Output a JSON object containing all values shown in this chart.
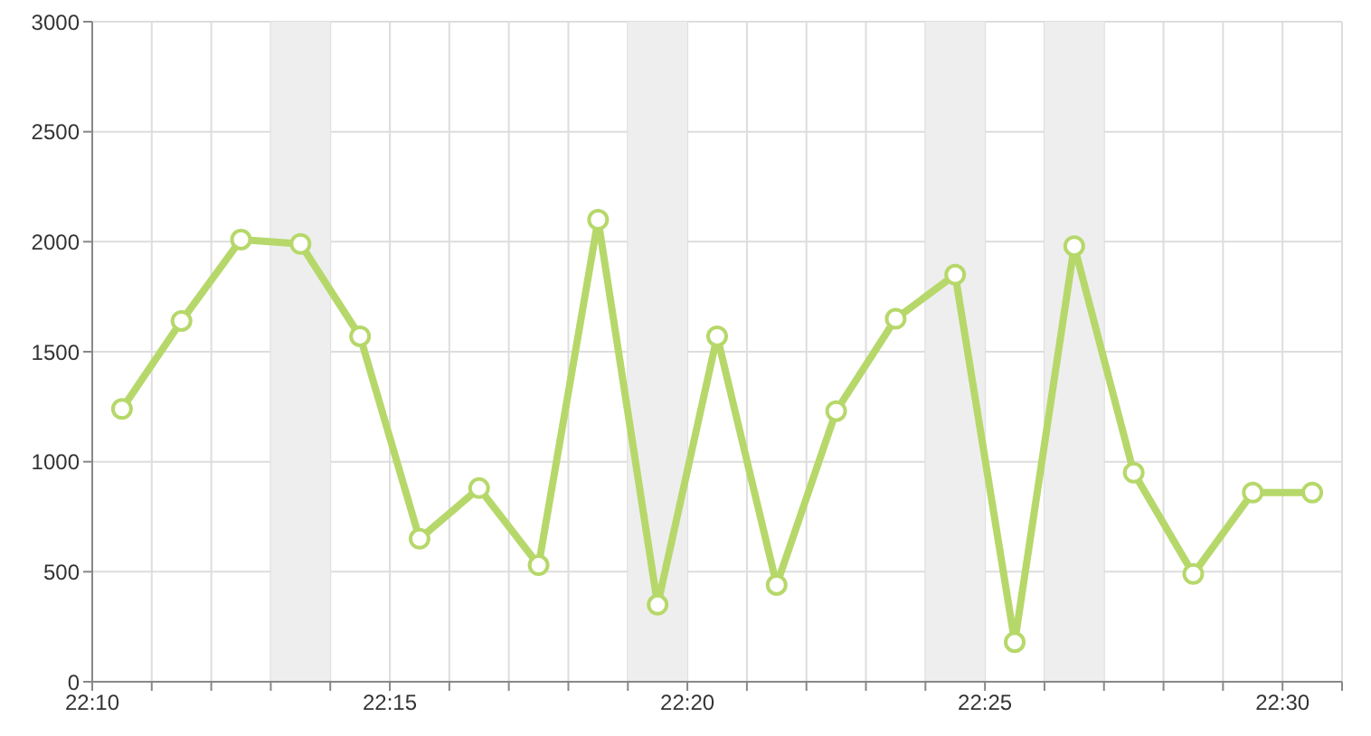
{
  "chart_data": {
    "type": "line",
    "x": [
      22.175,
      22.19167,
      22.20833,
      22.225,
      22.24167,
      22.25833,
      22.275,
      22.29167,
      22.30833,
      22.325,
      22.34167,
      22.35833,
      22.375,
      22.39167,
      22.40833,
      22.425,
      22.44167,
      22.45833,
      22.475,
      22.49167,
      22.50833
    ],
    "series": [
      {
        "color": "#b6d86a",
        "values": [
          1240,
          1640,
          2010,
          1990,
          1570,
          650,
          880,
          530,
          2100,
          350,
          1570,
          440,
          1230,
          1650,
          1850,
          180,
          1980,
          950,
          490,
          860,
          860
        ]
      }
    ],
    "xlim": [
      22.16667,
      22.51667
    ],
    "xticks": [
      {
        "value": 22.16667,
        "label": "22:10"
      },
      {
        "value": 22.18333,
        "label": null
      },
      {
        "value": 22.2,
        "label": null
      },
      {
        "value": 22.21667,
        "label": null
      },
      {
        "value": 22.23333,
        "label": null
      },
      {
        "value": 22.25,
        "label": "22:15"
      },
      {
        "value": 22.26667,
        "label": null
      },
      {
        "value": 22.28333,
        "label": null
      },
      {
        "value": 22.3,
        "label": null
      },
      {
        "value": 22.31667,
        "label": null
      },
      {
        "value": 22.33333,
        "label": "22:20"
      },
      {
        "value": 22.35,
        "label": null
      },
      {
        "value": 22.36667,
        "label": null
      },
      {
        "value": 22.38333,
        "label": null
      },
      {
        "value": 22.4,
        "label": null
      },
      {
        "value": 22.41667,
        "label": "22:25"
      },
      {
        "value": 22.43333,
        "label": null
      },
      {
        "value": 22.45,
        "label": null
      },
      {
        "value": 22.46667,
        "label": null
      },
      {
        "value": 22.48333,
        "label": null
      },
      {
        "value": 22.5,
        "label": "22:30"
      },
      {
        "value": 22.51667,
        "label": null
      }
    ],
    "ylim": [
      0,
      3000
    ],
    "yticks": [
      0,
      500,
      1000,
      1500,
      2000,
      2500,
      3000
    ],
    "bands": [
      {
        "axis": "x",
        "from": 22.21667,
        "to": 22.23333,
        "color": "#eeeeee"
      },
      {
        "axis": "x",
        "from": 22.31667,
        "to": 22.33333,
        "color": "#eeeeee"
      },
      {
        "axis": "x",
        "from": 22.4,
        "to": 22.41667,
        "color": "#eeeeee"
      },
      {
        "axis": "x",
        "from": 22.43333,
        "to": 22.45,
        "color": "#eeeeee"
      }
    ],
    "grid": true,
    "marker": "circle",
    "line_style": "solid"
  }
}
